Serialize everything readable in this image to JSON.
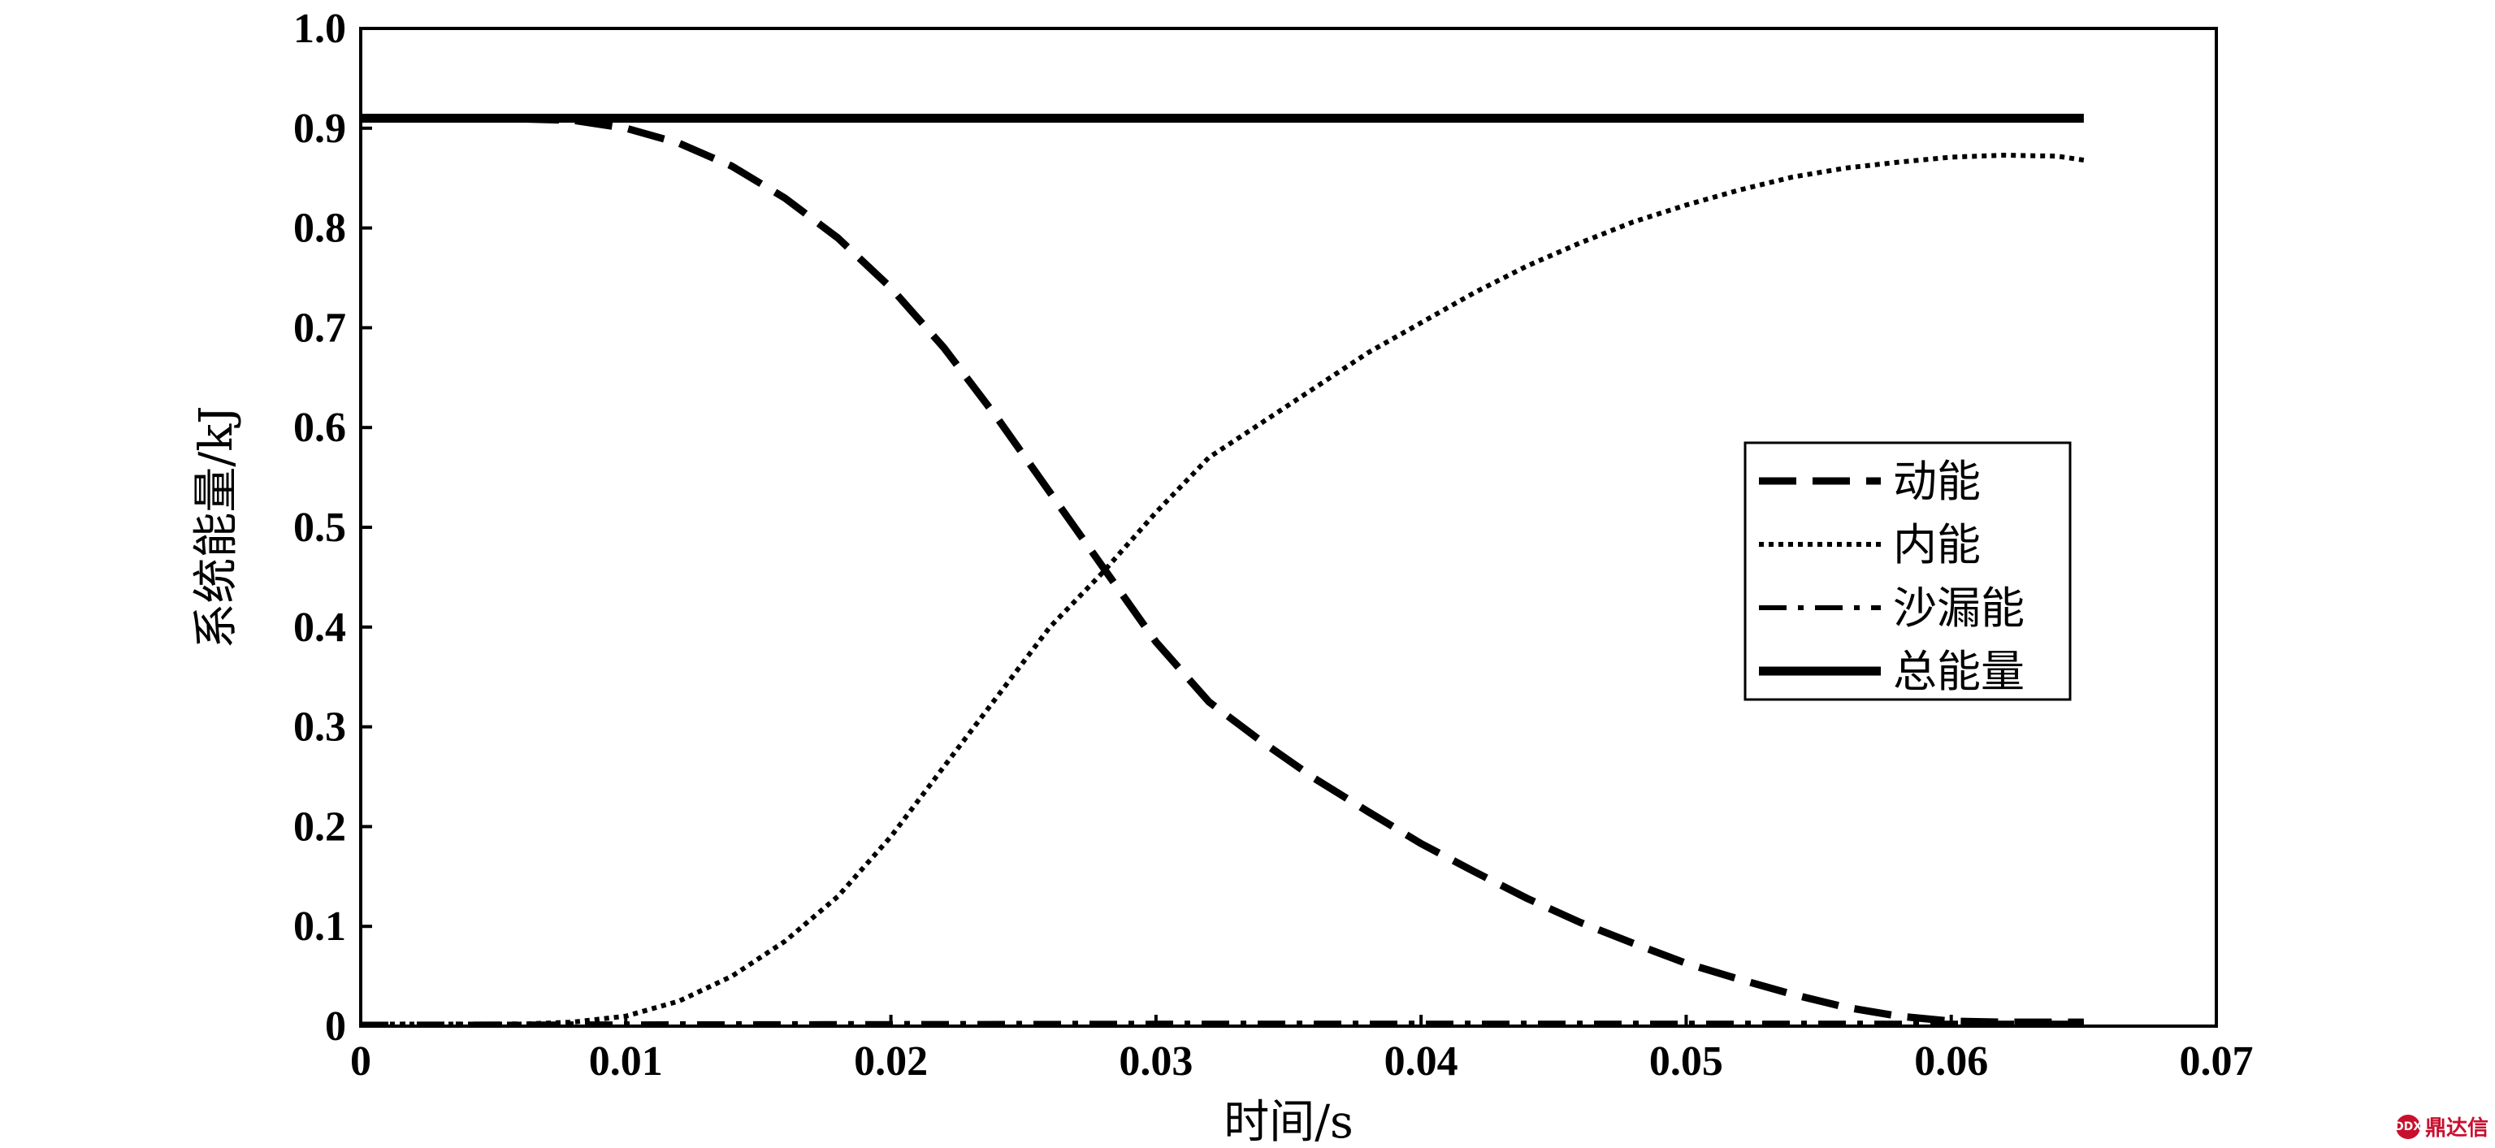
{
  "chart_data": {
    "type": "line",
    "xlabel": "时间/s",
    "ylabel": "系统能量/kJ",
    "xlim": [
      0,
      0.07
    ],
    "ylim": [
      0,
      1.0
    ],
    "x_ticks": [
      "0",
      "0.01",
      "0.02",
      "0.03",
      "0.04",
      "0.05",
      "0.06",
      "0.07"
    ],
    "y_ticks": [
      "0",
      "0.1",
      "0.2",
      "0.3",
      "0.4",
      "0.5",
      "0.6",
      "0.7",
      "0.8",
      "0.9",
      "1.0"
    ],
    "legend_position": "right",
    "grid": false,
    "series": [
      {
        "name": "动能",
        "style": "dashed",
        "points": [
          [
            0,
            0.91
          ],
          [
            0.005,
            0.91
          ],
          [
            0.008,
            0.908
          ],
          [
            0.01,
            0.9
          ],
          [
            0.012,
            0.885
          ],
          [
            0.014,
            0.862
          ],
          [
            0.016,
            0.83
          ],
          [
            0.018,
            0.79
          ],
          [
            0.02,
            0.74
          ],
          [
            0.022,
            0.68
          ],
          [
            0.024,
            0.61
          ],
          [
            0.026,
            0.535
          ],
          [
            0.028,
            0.46
          ],
          [
            0.03,
            0.385
          ],
          [
            0.032,
            0.325
          ],
          [
            0.034,
            0.285
          ],
          [
            0.036,
            0.248
          ],
          [
            0.038,
            0.215
          ],
          [
            0.04,
            0.183
          ],
          [
            0.042,
            0.155
          ],
          [
            0.044,
            0.128
          ],
          [
            0.046,
            0.104
          ],
          [
            0.048,
            0.083
          ],
          [
            0.05,
            0.063
          ],
          [
            0.052,
            0.047
          ],
          [
            0.054,
            0.032
          ],
          [
            0.056,
            0.019
          ],
          [
            0.058,
            0.01
          ],
          [
            0.06,
            0.005
          ],
          [
            0.062,
            0.004
          ],
          [
            0.065,
            0.004
          ]
        ]
      },
      {
        "name": "内能",
        "style": "dotted",
        "points": [
          [
            0,
            0.002
          ],
          [
            0.006,
            0.002
          ],
          [
            0.008,
            0.004
          ],
          [
            0.01,
            0.01
          ],
          [
            0.012,
            0.025
          ],
          [
            0.014,
            0.05
          ],
          [
            0.016,
            0.085
          ],
          [
            0.018,
            0.13
          ],
          [
            0.02,
            0.19
          ],
          [
            0.022,
            0.26
          ],
          [
            0.024,
            0.33
          ],
          [
            0.026,
            0.4
          ],
          [
            0.028,
            0.455
          ],
          [
            0.03,
            0.515
          ],
          [
            0.032,
            0.57
          ],
          [
            0.034,
            0.605
          ],
          [
            0.036,
            0.64
          ],
          [
            0.038,
            0.675
          ],
          [
            0.04,
            0.705
          ],
          [
            0.042,
            0.735
          ],
          [
            0.044,
            0.762
          ],
          [
            0.046,
            0.785
          ],
          [
            0.048,
            0.806
          ],
          [
            0.05,
            0.823
          ],
          [
            0.052,
            0.838
          ],
          [
            0.054,
            0.851
          ],
          [
            0.056,
            0.86
          ],
          [
            0.058,
            0.866
          ],
          [
            0.06,
            0.871
          ],
          [
            0.062,
            0.873
          ],
          [
            0.064,
            0.872
          ],
          [
            0.065,
            0.868
          ]
        ]
      },
      {
        "name": "沙漏能",
        "style": "dash-dot",
        "points": [
          [
            0,
            0.002
          ],
          [
            0.03,
            0.003
          ],
          [
            0.065,
            0.003
          ]
        ]
      },
      {
        "name": "总能量",
        "style": "solid",
        "points": [
          [
            0,
            0.91
          ],
          [
            0.065,
            0.91
          ]
        ]
      }
    ]
  },
  "watermark": {
    "text": "鼎达信",
    "logo_text": "DDX"
  }
}
